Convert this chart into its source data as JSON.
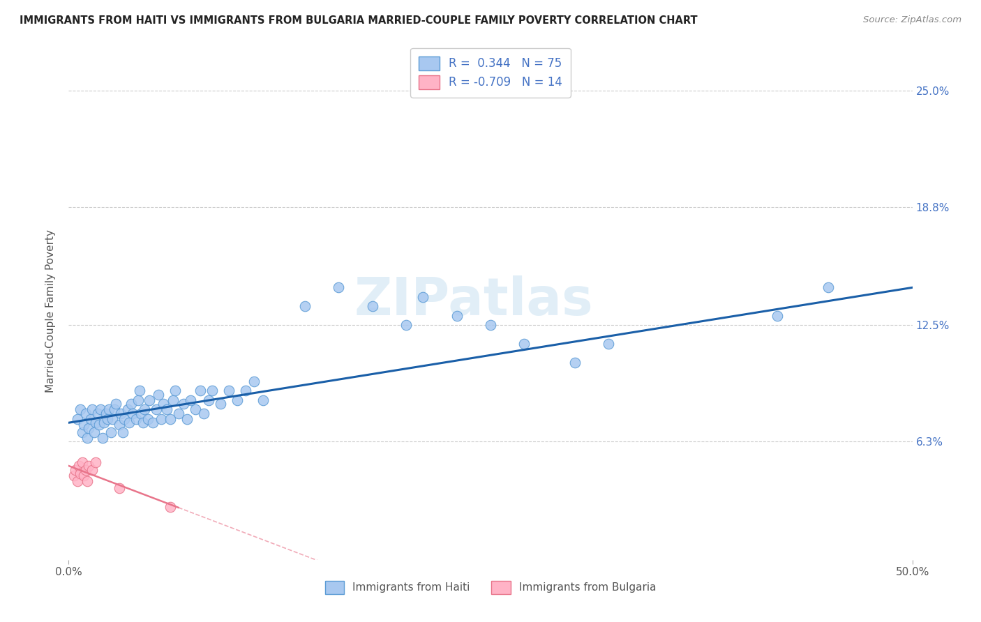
{
  "title": "IMMIGRANTS FROM HAITI VS IMMIGRANTS FROM BULGARIA MARRIED-COUPLE FAMILY POVERTY CORRELATION CHART",
  "source": "Source: ZipAtlas.com",
  "ylabel": "Married-Couple Family Poverty",
  "xlim": [
    0.0,
    0.5
  ],
  "ylim": [
    0.0,
    0.265
  ],
  "ytick_vals": [
    0.063,
    0.125,
    0.188,
    0.25
  ],
  "ytick_labels": [
    "6.3%",
    "12.5%",
    "18.8%",
    "25.0%"
  ],
  "haiti_color": "#a8c8f0",
  "haiti_edge_color": "#5b9bd5",
  "bulgaria_color": "#ffb3c6",
  "bulgaria_edge_color": "#e8748a",
  "haiti_line_color": "#1a5fa8",
  "bulgaria_line_color": "#e8748a",
  "r_haiti": "0.344",
  "n_haiti": "75",
  "r_bulgaria": "-0.709",
  "n_bulgaria": "14",
  "watermark": "ZIPatlas",
  "haiti_x": [
    0.005,
    0.007,
    0.008,
    0.009,
    0.01,
    0.011,
    0.012,
    0.013,
    0.014,
    0.015,
    0.016,
    0.017,
    0.018,
    0.019,
    0.02,
    0.021,
    0.022,
    0.023,
    0.024,
    0.025,
    0.026,
    0.027,
    0.028,
    0.03,
    0.031,
    0.032,
    0.033,
    0.035,
    0.036,
    0.037,
    0.038,
    0.04,
    0.041,
    0.042,
    0.043,
    0.044,
    0.045,
    0.047,
    0.048,
    0.05,
    0.052,
    0.053,
    0.055,
    0.056,
    0.058,
    0.06,
    0.062,
    0.063,
    0.065,
    0.068,
    0.07,
    0.072,
    0.075,
    0.078,
    0.08,
    0.083,
    0.085,
    0.09,
    0.095,
    0.1,
    0.105,
    0.11,
    0.115,
    0.14,
    0.16,
    0.18,
    0.2,
    0.21,
    0.23,
    0.25,
    0.27,
    0.3,
    0.32,
    0.42,
    0.45
  ],
  "haiti_y": [
    0.075,
    0.08,
    0.068,
    0.072,
    0.078,
    0.065,
    0.07,
    0.075,
    0.08,
    0.068,
    0.073,
    0.078,
    0.072,
    0.08,
    0.065,
    0.073,
    0.078,
    0.075,
    0.08,
    0.068,
    0.075,
    0.08,
    0.083,
    0.072,
    0.078,
    0.068,
    0.075,
    0.08,
    0.073,
    0.083,
    0.078,
    0.075,
    0.085,
    0.09,
    0.078,
    0.073,
    0.08,
    0.075,
    0.085,
    0.073,
    0.08,
    0.088,
    0.075,
    0.083,
    0.08,
    0.075,
    0.085,
    0.09,
    0.078,
    0.083,
    0.075,
    0.085,
    0.08,
    0.09,
    0.078,
    0.085,
    0.09,
    0.083,
    0.09,
    0.085,
    0.09,
    0.095,
    0.085,
    0.135,
    0.145,
    0.135,
    0.125,
    0.14,
    0.13,
    0.125,
    0.115,
    0.105,
    0.115,
    0.13,
    0.145
  ],
  "bulgaria_x": [
    0.003,
    0.004,
    0.005,
    0.006,
    0.007,
    0.008,
    0.009,
    0.01,
    0.011,
    0.012,
    0.014,
    0.016,
    0.03,
    0.06
  ],
  "bulgaria_y": [
    0.045,
    0.048,
    0.042,
    0.05,
    0.046,
    0.052,
    0.045,
    0.048,
    0.042,
    0.05,
    0.048,
    0.052,
    0.038,
    0.028
  ]
}
